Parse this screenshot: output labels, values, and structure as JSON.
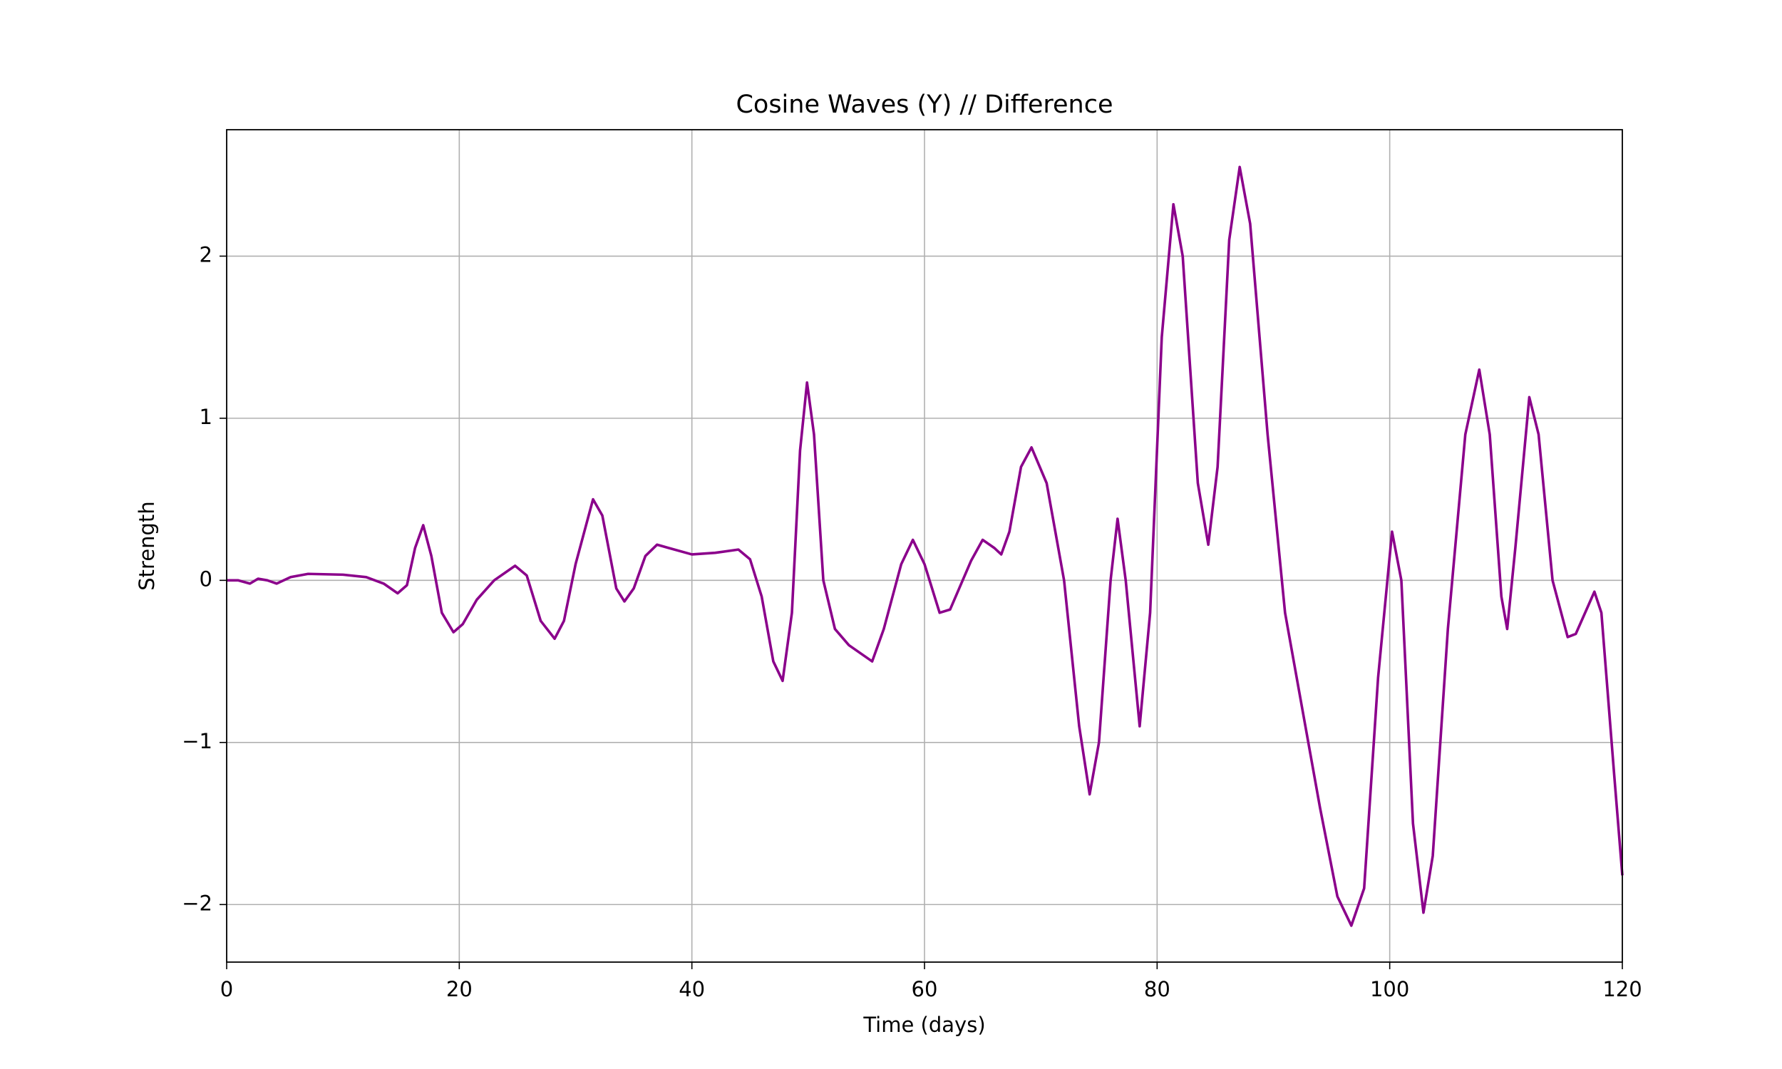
{
  "chart_data": {
    "type": "line",
    "title": "Cosine Waves (Y) // Difference",
    "x_label": "Time (days)",
    "y_label": "Strength",
    "x": [
      0,
      1,
      2,
      2.7,
      3.5,
      4.3,
      5.5,
      7,
      10,
      12,
      13.5,
      14.7,
      15.5,
      16.2,
      16.9,
      17.6,
      18.5,
      19.5,
      20.3,
      21.5,
      23,
      24.8,
      25.8,
      27,
      28.2,
      29,
      30,
      31.5,
      32.3,
      33.5,
      34.2,
      35,
      36,
      37,
      38,
      40,
      42,
      44,
      45,
      46,
      47,
      47.8,
      48.6,
      49.3,
      49.9,
      50.5,
      51.3,
      52.3,
      53.5,
      55.5,
      56.5,
      58,
      59,
      60,
      61.3,
      62.2,
      64,
      65,
      66,
      66.6,
      67.3,
      68.3,
      69.2,
      70.5,
      72,
      73.3,
      74.2,
      75,
      76,
      76.6,
      77.3,
      78.5,
      79.4,
      80.4,
      81.4,
      82.2,
      83.5,
      84.4,
      85.2,
      86.2,
      87.1,
      88,
      89.5,
      91,
      92.5,
      94,
      95.5,
      96.7,
      97.8,
      99,
      100.2,
      101,
      102,
      102.9,
      103.7,
      105,
      106.5,
      107.7,
      108.6,
      109.6,
      110.1,
      110.8,
      112,
      112.8,
      114,
      115.3,
      116,
      117.6,
      118.2,
      119.3,
      120
    ],
    "series": [
      {
        "name": "Difference",
        "color": "#8b008b",
        "values": [
          0,
          0,
          -0.02,
          0.01,
          0,
          -0.02,
          0.02,
          0.04,
          0.035,
          0.02,
          -0.02,
          -0.08,
          -0.03,
          0.2,
          0.34,
          0.15,
          -0.2,
          -0.32,
          -0.27,
          -0.12,
          0,
          0.09,
          0.03,
          -0.25,
          -0.36,
          -0.25,
          0.1,
          0.5,
          0.4,
          -0.05,
          -0.13,
          -0.05,
          0.15,
          0.22,
          0.2,
          0.16,
          0.17,
          0.19,
          0.13,
          -0.1,
          -0.5,
          -0.62,
          -0.2,
          0.8,
          1.22,
          0.9,
          0,
          -0.3,
          -0.4,
          -0.5,
          -0.3,
          0.1,
          0.25,
          0.1,
          -0.2,
          -0.18,
          0.12,
          0.25,
          0.2,
          0.16,
          0.3,
          0.7,
          0.82,
          0.6,
          0,
          -0.9,
          -1.32,
          -1.0,
          0,
          0.38,
          0,
          -0.9,
          -0.2,
          1.5,
          2.32,
          2.0,
          0.6,
          0.22,
          0.7,
          2.1,
          2.55,
          2.2,
          0.9,
          -0.2,
          -0.8,
          -1.4,
          -1.95,
          -2.13,
          -1.9,
          -0.6,
          0.3,
          0,
          -1.5,
          -2.05,
          -1.7,
          -0.3,
          0.9,
          1.3,
          0.9,
          -0.1,
          -0.3,
          0.2,
          1.13,
          0.9,
          0,
          -0.35,
          -0.33,
          -0.07,
          -0.2,
          -1.2,
          -1.82
        ]
      }
    ],
    "xlim": [
      0,
      120
    ],
    "xticks": [
      0,
      20,
      40,
      60,
      80,
      100,
      120
    ],
    "ylim": [
      -2.355,
      2.78
    ],
    "yticks": [
      {
        "value": -2,
        "label": "−2"
      },
      {
        "value": -1,
        "label": "−1"
      },
      0,
      1,
      2
    ],
    "grid": true
  }
}
